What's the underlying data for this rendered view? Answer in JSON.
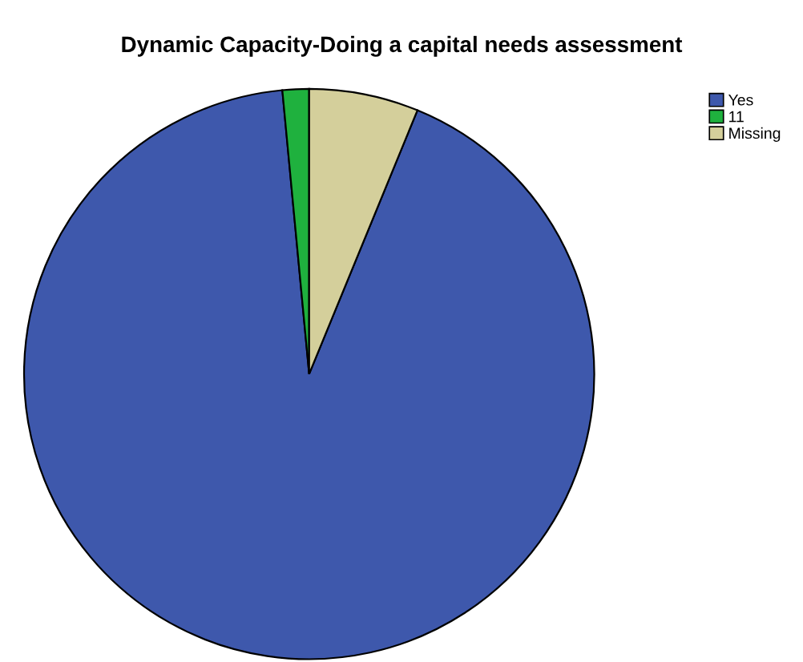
{
  "chart_data": {
    "type": "pie",
    "title": "Dynamic Capacity-Doing a capital needs assessment",
    "categories": [
      "Yes",
      "11",
      "Missing"
    ],
    "values": [
      92.3,
      1.5,
      6.2
    ],
    "colors": [
      "#3e58ac",
      "#1fb13e",
      "#d4cf9b"
    ],
    "legend": "top right"
  }
}
